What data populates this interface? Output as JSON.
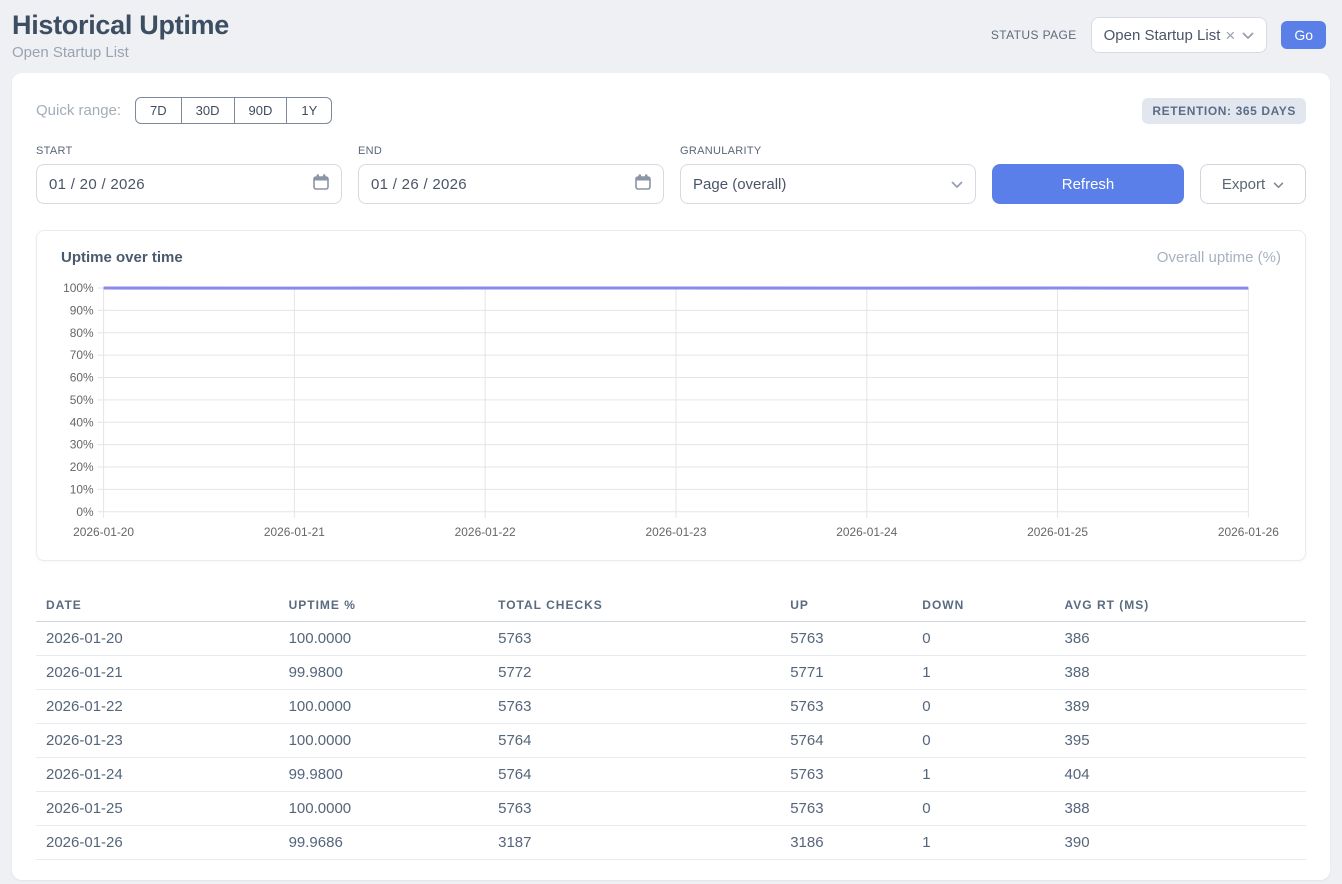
{
  "header": {
    "title": "Historical Uptime",
    "subtitle": "Open Startup List",
    "status_page_label": "STATUS PAGE",
    "status_page_value": "Open Startup List",
    "clear_icon": "×",
    "go_label": "Go"
  },
  "filters": {
    "quick_range_label": "Quick range:",
    "quick_ranges": [
      "7D",
      "30D",
      "90D",
      "1Y"
    ],
    "retention_badge": "RETENTION: 365 DAYS",
    "start_label": "START",
    "start_value": "01 / 20 / 2026",
    "end_label": "END",
    "end_value": "01 / 26 / 2026",
    "granularity_label": "GRANULARITY",
    "granularity_value": "Page (overall)",
    "refresh_label": "Refresh",
    "export_label": "Export"
  },
  "chart": {
    "title": "Uptime over time",
    "legend": "Overall uptime (%)"
  },
  "chart_data": {
    "type": "line",
    "title": "Uptime over time",
    "legend": "Overall uptime (%)",
    "x": [
      "2026-01-20",
      "2026-01-21",
      "2026-01-22",
      "2026-01-23",
      "2026-01-24",
      "2026-01-25",
      "2026-01-26"
    ],
    "series": [
      {
        "name": "Overall uptime (%)",
        "values": [
          100.0,
          99.98,
          100.0,
          100.0,
          99.98,
          100.0,
          99.9686
        ]
      }
    ],
    "ylim": [
      0,
      100
    ],
    "yticks": [
      0,
      10,
      20,
      30,
      40,
      50,
      60,
      70,
      80,
      90,
      100
    ],
    "ytick_suffix": "%",
    "grid": true,
    "legend_position": "top-right",
    "line_color": "#8a8aec",
    "grid_color": "#e5e5e5",
    "axis_text_color": "#666666"
  },
  "table": {
    "columns": [
      "DATE",
      "UPTIME %",
      "TOTAL CHECKS",
      "UP",
      "DOWN",
      "AVG RT (MS)"
    ],
    "rows": [
      [
        "2026-01-20",
        "100.0000",
        "5763",
        "5763",
        "0",
        "386"
      ],
      [
        "2026-01-21",
        "99.9800",
        "5772",
        "5771",
        "1",
        "388"
      ],
      [
        "2026-01-22",
        "100.0000",
        "5763",
        "5763",
        "0",
        "389"
      ],
      [
        "2026-01-23",
        "100.0000",
        "5764",
        "5764",
        "0",
        "395"
      ],
      [
        "2026-01-24",
        "99.9800",
        "5764",
        "5763",
        "1",
        "404"
      ],
      [
        "2026-01-25",
        "100.0000",
        "5763",
        "5763",
        "0",
        "388"
      ],
      [
        "2026-01-26",
        "99.9686",
        "3187",
        "3186",
        "1",
        "390"
      ]
    ]
  },
  "colors": {
    "accent_blue": "#5b7fe8",
    "chart_line": "#8a8aec",
    "page_bg": "#eef0f4",
    "badge_bg": "#e2e7ef",
    "badge_text": "#5c6c86",
    "title_text": "#3d4e62"
  }
}
